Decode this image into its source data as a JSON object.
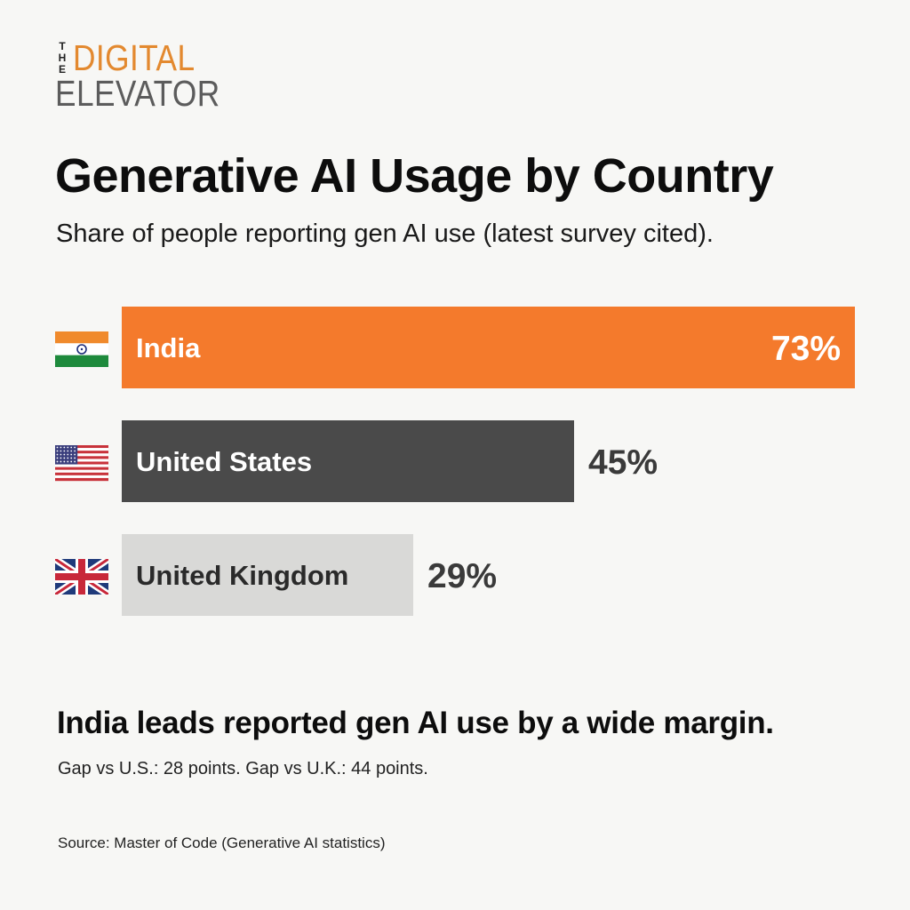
{
  "logo": {
    "the_letters": [
      "T",
      "H",
      "E"
    ],
    "line1": "DIGITAL",
    "line2": "ELEVATOR",
    "accent_color": "#e3892f",
    "secondary_color": "#5c5c5c"
  },
  "chart_data": {
    "type": "bar",
    "orientation": "horizontal",
    "title": "Generative AI Usage by Country",
    "subtitle": "Share of people reporting gen AI use (latest survey cited).",
    "categories": [
      "India",
      "United States",
      "United Kingdom"
    ],
    "values": [
      73,
      45,
      29
    ],
    "value_labels": [
      "73%",
      "45%",
      "29%"
    ],
    "unit": "%",
    "xlim": [
      0,
      73
    ],
    "grid": false,
    "legend": "none",
    "bar_colors": [
      "#f47a2c",
      "#4a4a4a",
      "#d9d9d7"
    ],
    "label_colors": [
      "#ffffff",
      "#ffffff",
      "#2a2a2a"
    ],
    "value_label_position": [
      "inside",
      "outside",
      "outside"
    ],
    "flag_icons": [
      "india-flag-icon",
      "usa-flag-icon",
      "uk-flag-icon"
    ]
  },
  "takeaway": {
    "headline": "India leads reported gen AI use by a wide margin.",
    "detail": "Gap vs U.S.: 28 points. Gap vs U.K.: 44 points."
  },
  "source": "Source: Master of Code (Generative AI statistics)"
}
